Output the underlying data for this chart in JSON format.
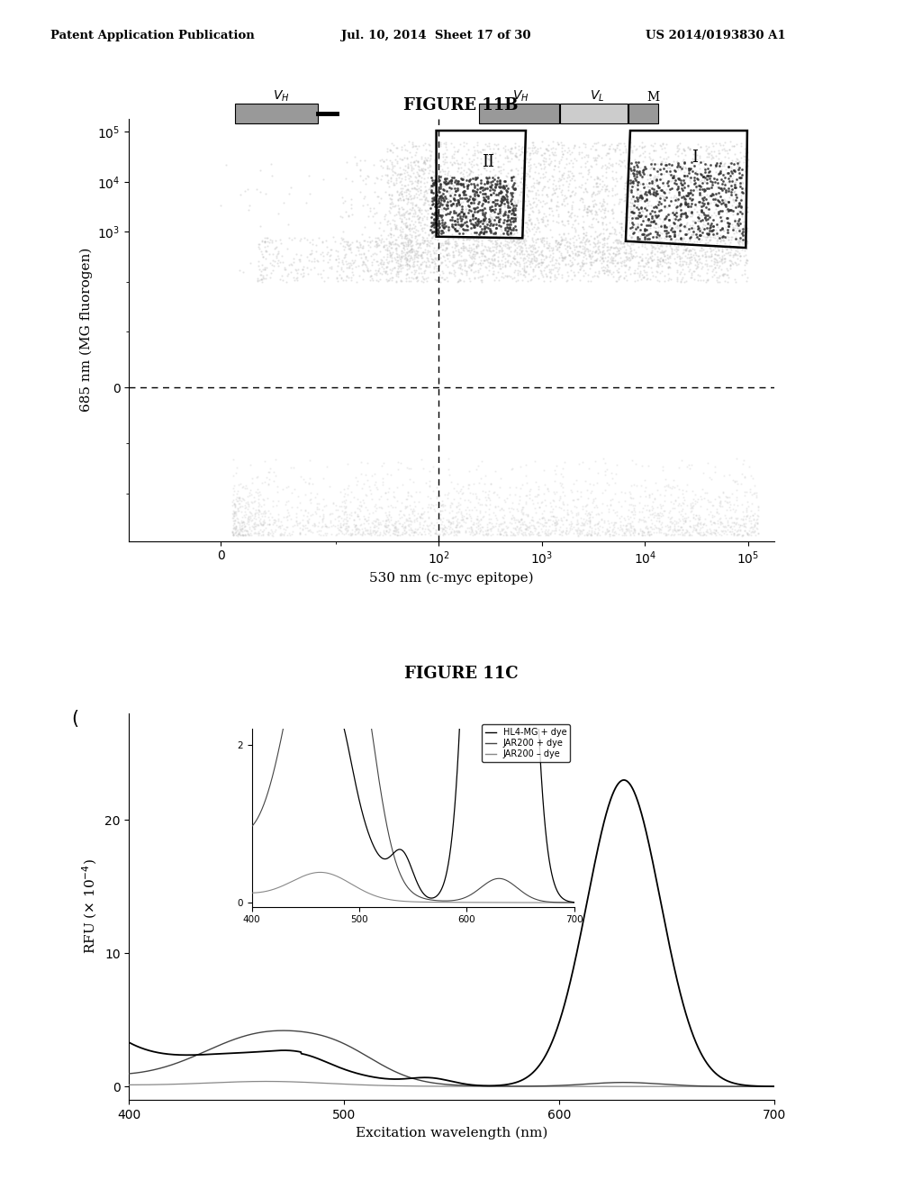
{
  "header_left": "Patent Application Publication",
  "header_mid": "Jul. 10, 2014  Sheet 17 of 30",
  "header_right": "US 2014/0193830 A1",
  "fig11b_title": "FIGURE 11B",
  "fig11c_title": "FIGURE 11C",
  "fig11b_xlabel": "530 nm (c-myc epitope)",
  "fig11b_ylabel": "685 nm (MG fluorogen)",
  "fig11c_xlabel": "Excitation wavelength (nm)",
  "fig11c_ylabel": "RFU (× 10⁻⁴)",
  "fig11c_legend": [
    "HL4-MG + dye",
    "JAR200 + dye",
    "JAR200 – dye"
  ],
  "bg_color": "#ffffff",
  "text_color": "#000000"
}
